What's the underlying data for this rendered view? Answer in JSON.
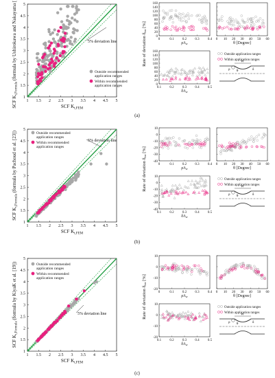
{
  "colors": {
    "outside": "#a8a8a8",
    "within": "#e8217f",
    "line": "#1a9b3c",
    "dash": "#1a9b3c",
    "axis": "#222222"
  },
  "common": {
    "scf_x_label": "SCF K",
    "scf_x_sub": "t,FEM",
    "dev_label": "5% deviation line",
    "legend_outside": "Outside recommended application ranges",
    "legend_within": "Within recommended application ranges",
    "small_legend_outside": "Outside application ranges",
    "small_legend_within": "Within application ranges",
    "rate_label": "Rate of deviation δ",
    "rate_unit": "[%]",
    "rate_sub": "err",
    "x_rho": "ρ/t",
    "x_rho_sub": "w",
    "x_theta": "θ [Degree]",
    "x_delta": "δ/t",
    "x_delta_sub": "w",
    "fig_W": "W",
    "fig_rho": "ρ",
    "fig_theta": "θ",
    "fig_delta": "δ"
  },
  "panels": [
    {
      "caption": "(a)",
      "ylabel": "SCF K",
      "ylabel_sub": "t,Formula",
      "ylabel_rest": " (formula by Ushirokawa and Nakayama [11])",
      "yticks": [
        "1",
        "1.5",
        "2",
        "2.5",
        "3",
        "3.5",
        "4",
        "4.5",
        "5"
      ],
      "xticks": [
        "1",
        "1.5",
        "2",
        "2.5",
        "3",
        "3.5",
        "4",
        "4.5",
        "5"
      ],
      "small_yticks_top": [
        "0",
        "20",
        "40",
        "60",
        "80",
        "100",
        "120",
        "140",
        "160"
      ],
      "small_yticks_bot": [
        "0",
        "20",
        "40",
        "60",
        "80",
        "100",
        "120",
        "140",
        "160"
      ],
      "rho_ticks": [
        "0",
        "0.1",
        "0.2",
        "0.3",
        "0.4"
      ],
      "theta_ticks": [
        "0",
        "10",
        "20",
        "30",
        "40",
        "50",
        "60"
      ],
      "delta_ticks": [
        "0.1",
        "0.2",
        "0.3",
        "0.4",
        "0.5"
      ]
    },
    {
      "caption": "(b)",
      "ylabel": "SCF K",
      "ylabel_sub": "t,Formula",
      "ylabel_rest": " (formula by Pachoud et al. [23])",
      "yticks": [
        "1",
        "1.5",
        "2",
        "2.5",
        "3",
        "3.5",
        "4",
        "4.5",
        "5"
      ],
      "xticks": [
        "1",
        "1.5",
        "2",
        "2.5",
        "3",
        "3.5",
        "4",
        "4.5",
        "5"
      ],
      "small_yticks_top": [
        "-40",
        "-30",
        "-20",
        "-10",
        "0",
        "10"
      ],
      "small_yticks_bot": [
        "-40",
        "-30",
        "-20",
        "-10",
        "0",
        "10"
      ],
      "rho_ticks": [
        "0",
        "0.1",
        "0.2",
        "0.3",
        "0.4"
      ],
      "theta_ticks": [
        "0",
        "10",
        "20",
        "30",
        "40",
        "50",
        "60"
      ],
      "delta_ticks": [
        "0.1",
        "0.2",
        "0.3",
        "0.4",
        "0.5"
      ]
    },
    {
      "caption": "(c)",
      "ylabel": "SCF K",
      "ylabel_sub": "t,Formula",
      "ylabel_rest": " (formula by KiyaK et al. [19])",
      "yticks": [
        "1",
        "1.5",
        "2",
        "2.5",
        "3",
        "3.5",
        "4",
        "4.5",
        "5"
      ],
      "xticks": [
        "1",
        "1.5",
        "2",
        "2.5",
        "3",
        "3.5",
        "4",
        "4.5",
        "5"
      ],
      "small_yticks_top": [
        "-20",
        "-10",
        "0",
        "10"
      ],
      "small_yticks_bot": [
        "-20",
        "-10",
        "0",
        "10"
      ],
      "rho_ticks": [
        "0",
        "0.1",
        "0.2",
        "0.3",
        "0.4"
      ],
      "theta_ticks": [
        "0",
        "10",
        "20",
        "30",
        "40",
        "50",
        "60"
      ],
      "delta_ticks": [
        "0.1",
        "0.2",
        "0.3",
        "0.4",
        "0.5"
      ]
    }
  ]
}
